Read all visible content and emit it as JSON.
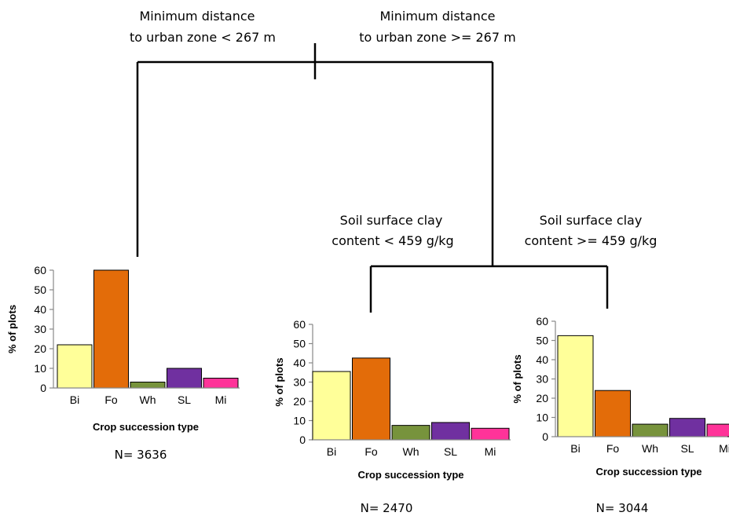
{
  "tree": {
    "root_split": {
      "left": [
        "Minimum distance",
        "to urban zone < 267 m"
      ],
      "right": [
        "Minimum distance",
        "to urban zone >= 267 m"
      ]
    },
    "sub_split": {
      "left": [
        "Soil surface clay",
        "content < 459 g/kg"
      ],
      "right": [
        "Soil surface clay",
        "content >= 459 g/kg"
      ]
    }
  },
  "chart_data": [
    {
      "type": "bar",
      "categories": [
        "Bi",
        "Fo",
        "Wh",
        "SL",
        "Mi"
      ],
      "values": [
        22,
        60,
        3,
        10,
        5
      ],
      "colors": [
        "#FFFF99",
        "#E36C09",
        "#77933C",
        "#7030A0",
        "#FF3399"
      ],
      "xlabel": "Crop succession type",
      "ylabel": "% of plots",
      "ylim": [
        0,
        60
      ],
      "yticks": [
        0,
        10,
        20,
        30,
        40,
        50,
        60
      ],
      "n_label": "N= 3636"
    },
    {
      "type": "bar",
      "categories": [
        "Bi",
        "Fo",
        "Wh",
        "SL",
        "Mi"
      ],
      "values": [
        35.5,
        42.5,
        7.5,
        9,
        6
      ],
      "colors": [
        "#FFFF99",
        "#E36C09",
        "#77933C",
        "#7030A0",
        "#FF3399"
      ],
      "xlabel": "Crop succession type",
      "ylabel": "% of plots",
      "ylim": [
        0,
        60
      ],
      "yticks": [
        0,
        10,
        20,
        30,
        40,
        50,
        60
      ],
      "n_label": "N= 2470"
    },
    {
      "type": "bar",
      "categories": [
        "Bi",
        "Fo",
        "Wh",
        "SL",
        "Mi"
      ],
      "values": [
        52.5,
        24,
        6.5,
        9.5,
        6.5
      ],
      "colors": [
        "#FFFF99",
        "#E36C09",
        "#77933C",
        "#7030A0",
        "#FF3399"
      ],
      "xlabel": "Crop succession type",
      "ylabel": "% of plots",
      "ylim": [
        0,
        60
      ],
      "yticks": [
        0,
        10,
        20,
        30,
        40,
        50,
        60
      ],
      "n_label": "N= 3044"
    }
  ]
}
